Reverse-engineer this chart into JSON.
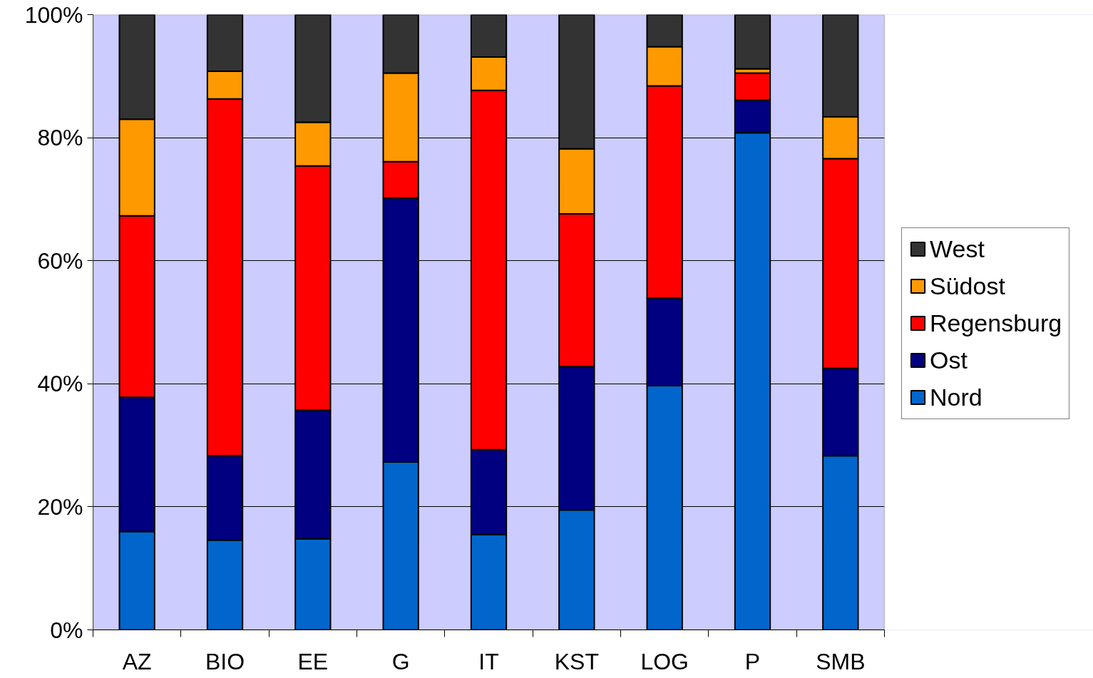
{
  "chart_data": {
    "type": "bar",
    "stacked": true,
    "categories": [
      "AZ",
      "BIO",
      "EE",
      "G",
      "IT",
      "KST",
      "LOG",
      "P",
      "SMB"
    ],
    "series": [
      {
        "name": "Nord",
        "color": "#0066cc",
        "values": [
          16.0,
          14.6,
          14.8,
          27.3,
          15.5,
          19.5,
          39.7,
          80.8,
          28.3
        ]
      },
      {
        "name": "Ost",
        "color": "#000080",
        "values": [
          21.8,
          13.7,
          20.9,
          42.9,
          13.8,
          23.3,
          14.2,
          5.3,
          14.2
        ]
      },
      {
        "name": "Regensburg",
        "color": "#ff0000",
        "values": [
          29.5,
          58.0,
          39.7,
          5.9,
          58.4,
          24.8,
          34.5,
          4.4,
          34.1
        ]
      },
      {
        "name": "Südost",
        "color": "#ff9900",
        "values": [
          15.7,
          4.5,
          7.1,
          14.4,
          5.4,
          10.6,
          6.4,
          0.7,
          6.8
        ]
      },
      {
        "name": "West",
        "color": "#333333",
        "values": [
          17.0,
          9.2,
          17.5,
          9.5,
          6.9,
          21.8,
          5.2,
          8.8,
          16.6
        ]
      }
    ],
    "ylim": [
      0,
      100
    ],
    "yticks": [
      {
        "value": 0,
        "label": "0%"
      },
      {
        "value": 20,
        "label": "20%"
      },
      {
        "value": 40,
        "label": "40%"
      },
      {
        "value": 60,
        "label": "60%"
      },
      {
        "value": 80,
        "label": "80%"
      },
      {
        "value": 100,
        "label": "100%"
      }
    ],
    "grid": "y",
    "legend": "right"
  }
}
